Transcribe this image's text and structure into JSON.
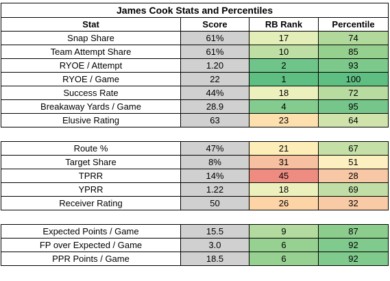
{
  "title": "James Cook Stats and Percentiles",
  "headers": [
    "Stat",
    "Score",
    "RB Rank",
    "Percentile"
  ],
  "sections": [
    [
      {
        "stat": "Snap Share",
        "score": "61%",
        "rank": "17",
        "pct": "74",
        "rank_color": "#e4eeb9",
        "pct_color": "#b1d99c"
      },
      {
        "stat": "Team Attempt Share",
        "score": "61%",
        "rank": "10",
        "pct": "85",
        "rank_color": "#bddfa4",
        "pct_color": "#96d08f"
      },
      {
        "stat": "RYOE / Attempt",
        "score": "1.20",
        "rank": "2",
        "pct": "93",
        "rank_color": "#6fc489",
        "pct_color": "#7cc98b"
      },
      {
        "stat": "RYOE / Game",
        "score": "22",
        "rank": "1",
        "pct": "100",
        "rank_color": "#5fbe82",
        "pct_color": "#5fbe82"
      },
      {
        "stat": "Success Rate",
        "score": "44%",
        "rank": "18",
        "pct": "72",
        "rank_color": "#ecf0bc",
        "pct_color": "#b8dba0"
      },
      {
        "stat": "Breakaway Yards / Game",
        "score": "28.9",
        "rank": "4",
        "pct": "95",
        "rank_color": "#83cb8e",
        "pct_color": "#76c68b"
      },
      {
        "stat": "Elusive Rating",
        "score": "63",
        "rank": "23",
        "pct": "64",
        "rank_color": "#fde0ad",
        "pct_color": "#cfe3ab"
      }
    ],
    [
      {
        "stat": "Route %",
        "score": "47%",
        "rank": "21",
        "pct": "67",
        "rank_color": "#fdeeb8",
        "pct_color": "#c4e0a6"
      },
      {
        "stat": "Target Share",
        "score": "8%",
        "rank": "31",
        "pct": "51",
        "rank_color": "#f7c0a0",
        "pct_color": "#fdf0c0"
      },
      {
        "stat": "TPRR",
        "score": "14%",
        "rank": "45",
        "pct": "28",
        "rank_color": "#ee8c82",
        "pct_color": "#f7c7a6"
      },
      {
        "stat": "YPRR",
        "score": "1.22",
        "rank": "18",
        "pct": "69",
        "rank_color": "#ecf0bc",
        "pct_color": "#c0dea5"
      },
      {
        "stat": "Receiver Rating",
        "score": "50",
        "rank": "26",
        "pct": "32",
        "rank_color": "#fcd4a6",
        "pct_color": "#f8caa6"
      }
    ],
    [
      {
        "stat": "Expected Points / Game",
        "score": "15.5",
        "rank": "9",
        "pct": "87",
        "rank_color": "#b3dba0",
        "pct_color": "#8ccd8e"
      },
      {
        "stat": "FP over Expected / Game",
        "score": "3.0",
        "rank": "6",
        "pct": "92",
        "rank_color": "#97d192",
        "pct_color": "#7fca8c"
      },
      {
        "stat": "PPR Points / Game",
        "score": "18.5",
        "rank": "6",
        "pct": "92",
        "rank_color": "#97d192",
        "pct_color": "#7fca8c"
      }
    ]
  ]
}
